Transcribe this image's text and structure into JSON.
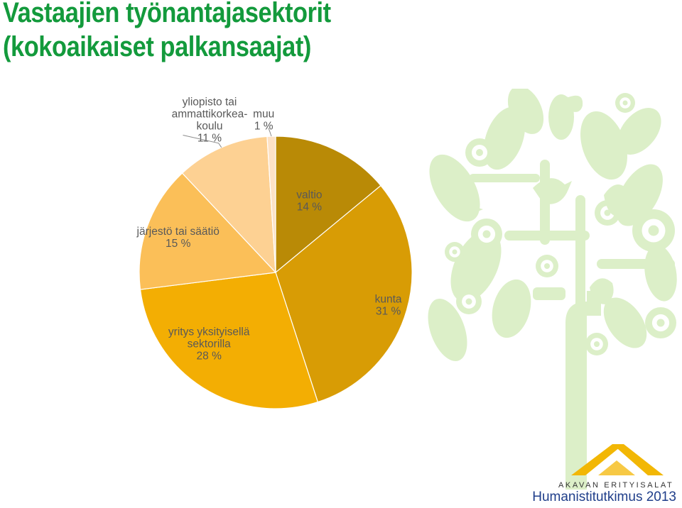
{
  "title": {
    "line1": "Vastaajien työnantajasektorit",
    "line2": "(kokoaikaiset palkansaajat)"
  },
  "colors": {
    "title": "#139a3c",
    "tree": "#dcefc8",
    "logo_gold": "#f2b705",
    "footer_text": "#1f3e8a"
  },
  "chart_data": {
    "type": "pie",
    "start": "12 o'clock, clockwise",
    "slices": [
      {
        "label": "valtio",
        "value": 14,
        "color": "#b98a06",
        "label_text": [
          "valtio",
          "14 %"
        ]
      },
      {
        "label": "kunta",
        "value": 31,
        "color": "#d89c05",
        "label_text": [
          "kunta",
          "31 %"
        ]
      },
      {
        "label": "yritys yksityisellä sektorilla",
        "value": 28,
        "color": "#f3ae03",
        "label_text": [
          "yritys yksityisellä",
          "sektorilla",
          "28 %"
        ]
      },
      {
        "label": "järjestö tai säätiö",
        "value": 15,
        "color": "#fbbf58",
        "label_text": [
          "järjestö tai säätiö",
          "15 %"
        ]
      },
      {
        "label": "yliopisto tai ammattikorkeakoulu",
        "value": 11,
        "color": "#fdd193",
        "label_text": [
          "yliopisto tai",
          "ammattikorkea-",
          "koulu",
          "11 %"
        ]
      },
      {
        "label": "muu",
        "value": 1,
        "color": "#fde2c6",
        "label_text": [
          "muu",
          "1 %"
        ]
      }
    ]
  },
  "branding": {
    "logo_text": "AKAVAN ERITYISALAT",
    "footer": "Humanistitutkimus 2013"
  }
}
